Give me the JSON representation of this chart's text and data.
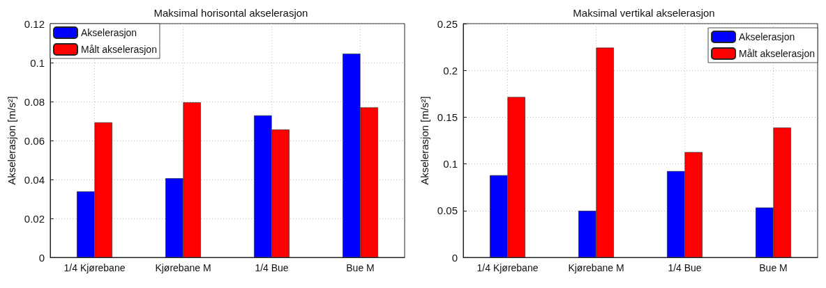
{
  "chart_data": [
    {
      "type": "bar",
      "title": "Maksimal horisontal akselerasjon",
      "ylabel": "Akselerasjon [m/s²]",
      "categories": [
        "1/4 Kjørebane",
        "Kjørebane M",
        "1/4 Bue",
        "Bue M"
      ],
      "series": [
        {
          "name": "Akselerasjon",
          "color": "#0000ff",
          "values": [
            0.0339,
            0.0406,
            0.0729,
            0.1046
          ]
        },
        {
          "name": "Målt akselerasjon",
          "color": "#ff0000",
          "values": [
            0.0693,
            0.0796,
            0.0656,
            0.077
          ]
        }
      ],
      "ylim": [
        0,
        0.12
      ],
      "yticks": [
        0,
        0.02,
        0.04,
        0.06,
        0.08,
        0.1,
        0.12
      ],
      "grid": true,
      "legend": "top left"
    },
    {
      "type": "bar",
      "title": "Maksimal vertikal akselerasjon",
      "ylabel": "Akselerasjon [m/s²]",
      "categories": [
        "1/4 Kjørebane",
        "Kjørebane M",
        "1/4 Bue",
        "Bue M"
      ],
      "series": [
        {
          "name": "Akselerasjon",
          "color": "#0000ff",
          "values": [
            0.0879,
            0.0498,
            0.0923,
            0.0533
          ]
        },
        {
          "name": "Målt akselerasjon",
          "color": "#ff0000",
          "values": [
            0.1715,
            0.2243,
            0.1126,
            0.1388
          ]
        }
      ],
      "ylim": [
        0,
        0.25
      ],
      "yticks": [
        0,
        0.05,
        0.1,
        0.15,
        0.2,
        0.25
      ],
      "grid": true,
      "legend": "top right"
    }
  ]
}
